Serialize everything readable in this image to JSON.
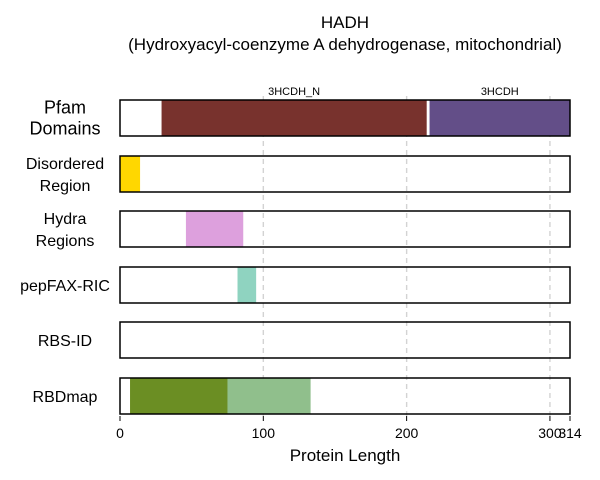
{
  "chart_data": {
    "type": "bar",
    "title": "HADH",
    "subtitle": "(Hydroxyacyl-coenzyme A dehydrogenase, mitochondrial)",
    "xlabel": "Protein Length",
    "xlim": [
      0,
      314
    ],
    "xticks": [
      0,
      100,
      200,
      300,
      314
    ],
    "grid": {
      "vertical": true,
      "style": "dashed",
      "color": "#d3d3d3",
      "positions": [
        100,
        200,
        300
      ]
    },
    "protein_length": 314,
    "tracks": [
      {
        "id": "pfam",
        "label_lines": [
          "Pfam",
          "Domains"
        ],
        "segments": [
          {
            "name": "3HCDH_N",
            "start": 29,
            "end": 214,
            "color": "#78322d",
            "label": "3HCDH_N"
          },
          {
            "name": "3HCDH",
            "start": 216,
            "end": 314,
            "color": "#634e88",
            "label": "3HCDH"
          }
        ]
      },
      {
        "id": "disordered",
        "label_lines": [
          "Disordered",
          "Region"
        ],
        "segments": [
          {
            "start": 0,
            "end": 14,
            "color": "#ffd700"
          }
        ]
      },
      {
        "id": "hydra",
        "label_lines": [
          "Hydra",
          "Regions"
        ],
        "segments": [
          {
            "start": 46,
            "end": 86,
            "color": "#dda0dd"
          }
        ]
      },
      {
        "id": "pepfax",
        "label_lines": [
          "pepFAX-RIC"
        ],
        "segments": [
          {
            "start": 82,
            "end": 95,
            "color": "#8fd3c0"
          }
        ]
      },
      {
        "id": "rbsid",
        "label_lines": [
          "RBS-ID"
        ],
        "segments": []
      },
      {
        "id": "rbdmap",
        "label_lines": [
          "RBDmap"
        ],
        "segments": [
          {
            "start": 7,
            "end": 75,
            "color": "#6b8e23"
          },
          {
            "start": 75,
            "end": 133,
            "color": "#90bf8c"
          }
        ]
      }
    ]
  }
}
